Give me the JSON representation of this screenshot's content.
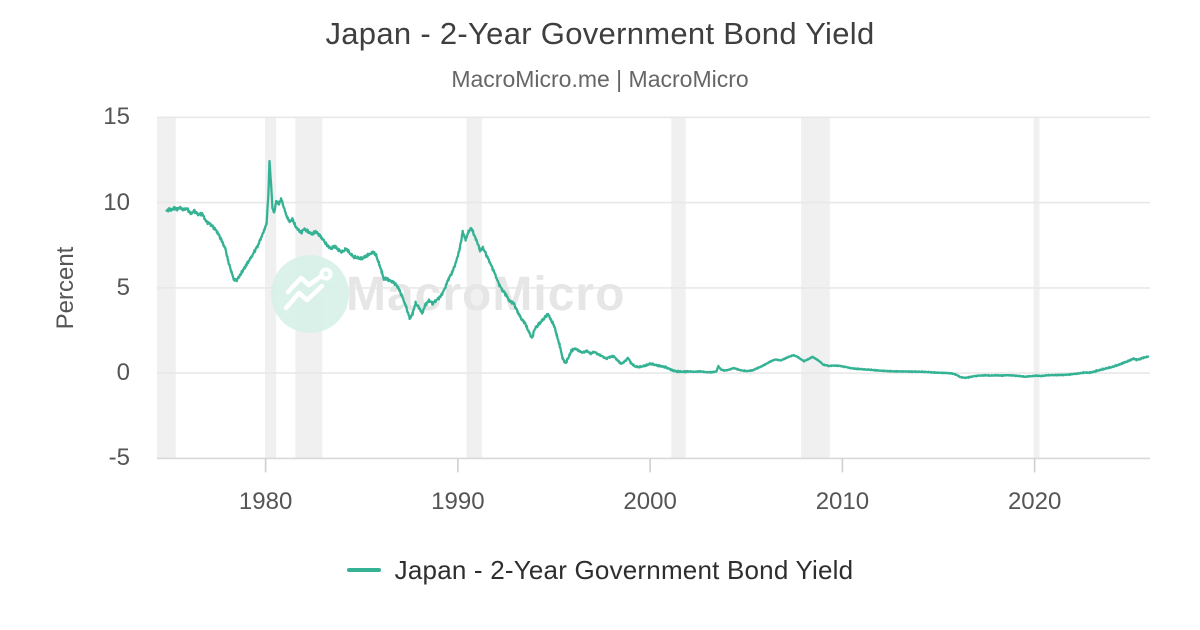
{
  "header": {
    "title": "Japan - 2-Year Government Bond Yield",
    "subtitle": "MacroMicro.me | MacroMicro"
  },
  "watermark": {
    "text": "MacroMicro",
    "logo": "macromicro-mountain-chart-logo",
    "text_color": "#e6e6e6",
    "circle_color": "#d6f0e8"
  },
  "legend": {
    "label": "Japan - 2-Year Government Bond Yield",
    "color": "#35b294"
  },
  "chart_data": {
    "type": "line",
    "title": "Japan - 2-Year Government Bond Yield",
    "xlabel": "",
    "ylabel": "Percent",
    "y_ticks": [
      15,
      10,
      5,
      0,
      -5
    ],
    "x_ticks": [
      1980,
      1990,
      2000,
      2010,
      2020
    ],
    "x_range": [
      1974.35,
      2026.0
    ],
    "y_range": [
      -5,
      15
    ],
    "grid": "horizontal",
    "legend_position": "bottom",
    "line_color": "#35b294",
    "band_color": "#f0f0f0",
    "grid_color": "#e8e8e8",
    "axis_color": "#d9d9d9",
    "tick_color": "#cfcfcf",
    "recession_bands": [
      [
        1974.35,
        1975.33
      ],
      [
        1979.97,
        1980.55
      ],
      [
        1981.55,
        1982.95
      ],
      [
        1990.45,
        1991.25
      ],
      [
        2001.1,
        2001.85
      ],
      [
        2007.85,
        2009.35
      ],
      [
        2019.95,
        2020.25
      ]
    ],
    "series": [
      {
        "name": "Japan - 2-Year Government Bond Yield",
        "points": [
          [
            1974.85,
            9.5
          ],
          [
            1975.0,
            9.62
          ],
          [
            1975.1,
            9.55
          ],
          [
            1975.25,
            9.7
          ],
          [
            1975.4,
            9.6
          ],
          [
            1975.55,
            9.72
          ],
          [
            1975.7,
            9.58
          ],
          [
            1975.9,
            9.65
          ],
          [
            1976.1,
            9.35
          ],
          [
            1976.3,
            9.5
          ],
          [
            1976.5,
            9.3
          ],
          [
            1976.7,
            9.35
          ],
          [
            1976.9,
            8.9
          ],
          [
            1977.1,
            8.75
          ],
          [
            1977.3,
            8.55
          ],
          [
            1977.5,
            8.25
          ],
          [
            1977.7,
            7.8
          ],
          [
            1977.9,
            7.3
          ],
          [
            1978.05,
            6.6
          ],
          [
            1978.2,
            6.0
          ],
          [
            1978.35,
            5.5
          ],
          [
            1978.5,
            5.45
          ],
          [
            1978.7,
            5.8
          ],
          [
            1979.0,
            6.35
          ],
          [
            1979.3,
            6.9
          ],
          [
            1979.6,
            7.5
          ],
          [
            1979.9,
            8.3
          ],
          [
            1980.05,
            8.8
          ],
          [
            1980.15,
            10.6
          ],
          [
            1980.2,
            12.4
          ],
          [
            1980.28,
            11.2
          ],
          [
            1980.35,
            9.7
          ],
          [
            1980.45,
            9.4
          ],
          [
            1980.55,
            10.1
          ],
          [
            1980.7,
            9.9
          ],
          [
            1980.8,
            10.25
          ],
          [
            1980.95,
            9.7
          ],
          [
            1981.1,
            9.2
          ],
          [
            1981.25,
            8.85
          ],
          [
            1981.4,
            9.05
          ],
          [
            1981.55,
            8.6
          ],
          [
            1981.7,
            8.4
          ],
          [
            1981.85,
            8.25
          ],
          [
            1982.0,
            8.45
          ],
          [
            1982.2,
            8.3
          ],
          [
            1982.4,
            8.15
          ],
          [
            1982.6,
            8.3
          ],
          [
            1982.8,
            8.1
          ],
          [
            1983.0,
            7.8
          ],
          [
            1983.2,
            7.5
          ],
          [
            1983.4,
            7.3
          ],
          [
            1983.6,
            7.45
          ],
          [
            1983.8,
            7.2
          ],
          [
            1984.0,
            7.1
          ],
          [
            1984.2,
            7.3
          ],
          [
            1984.4,
            7.0
          ],
          [
            1984.6,
            6.8
          ],
          [
            1984.8,
            6.75
          ],
          [
            1985.0,
            6.7
          ],
          [
            1985.2,
            6.85
          ],
          [
            1985.45,
            7.0
          ],
          [
            1985.6,
            7.1
          ],
          [
            1985.75,
            6.9
          ],
          [
            1985.9,
            6.4
          ],
          [
            1986.05,
            5.9
          ],
          [
            1986.15,
            5.5
          ],
          [
            1986.3,
            5.55
          ],
          [
            1986.5,
            5.4
          ],
          [
            1986.7,
            5.3
          ],
          [
            1986.9,
            5.0
          ],
          [
            1987.1,
            4.5
          ],
          [
            1987.3,
            3.9
          ],
          [
            1987.5,
            3.2
          ],
          [
            1987.65,
            3.5
          ],
          [
            1987.8,
            4.1
          ],
          [
            1988.0,
            3.8
          ],
          [
            1988.15,
            3.5
          ],
          [
            1988.3,
            4.0
          ],
          [
            1988.5,
            4.25
          ],
          [
            1988.7,
            4.1
          ],
          [
            1988.9,
            4.3
          ],
          [
            1989.1,
            4.5
          ],
          [
            1989.3,
            4.9
          ],
          [
            1989.5,
            5.5
          ],
          [
            1989.7,
            5.9
          ],
          [
            1989.9,
            6.5
          ],
          [
            1990.1,
            7.3
          ],
          [
            1990.25,
            8.3
          ],
          [
            1990.4,
            7.8
          ],
          [
            1990.55,
            8.3
          ],
          [
            1990.7,
            8.5
          ],
          [
            1990.85,
            8.1
          ],
          [
            1991.0,
            7.7
          ],
          [
            1991.15,
            7.2
          ],
          [
            1991.3,
            7.35
          ],
          [
            1991.5,
            6.9
          ],
          [
            1991.7,
            6.4
          ],
          [
            1991.9,
            5.9
          ],
          [
            1992.1,
            5.3
          ],
          [
            1992.3,
            4.9
          ],
          [
            1992.5,
            4.6
          ],
          [
            1992.7,
            4.2
          ],
          [
            1992.9,
            4.1
          ],
          [
            1993.1,
            3.6
          ],
          [
            1993.3,
            3.2
          ],
          [
            1993.5,
            2.9
          ],
          [
            1993.7,
            2.4
          ],
          [
            1993.85,
            2.05
          ],
          [
            1994.0,
            2.6
          ],
          [
            1994.2,
            2.85
          ],
          [
            1994.4,
            3.1
          ],
          [
            1994.55,
            3.3
          ],
          [
            1994.7,
            3.45
          ],
          [
            1994.85,
            3.1
          ],
          [
            1995.0,
            2.8
          ],
          [
            1995.15,
            2.2
          ],
          [
            1995.3,
            1.6
          ],
          [
            1995.45,
            0.85
          ],
          [
            1995.6,
            0.6
          ],
          [
            1995.75,
            0.9
          ],
          [
            1995.9,
            1.3
          ],
          [
            1996.1,
            1.45
          ],
          [
            1996.3,
            1.3
          ],
          [
            1996.5,
            1.2
          ],
          [
            1996.7,
            1.3
          ],
          [
            1996.9,
            1.15
          ],
          [
            1997.1,
            1.25
          ],
          [
            1997.3,
            1.1
          ],
          [
            1997.5,
            1.0
          ],
          [
            1997.7,
            0.85
          ],
          [
            1997.9,
            0.95
          ],
          [
            1998.1,
            1.0
          ],
          [
            1998.3,
            0.75
          ],
          [
            1998.5,
            0.55
          ],
          [
            1998.7,
            0.7
          ],
          [
            1998.85,
            0.9
          ],
          [
            1999.0,
            0.6
          ],
          [
            1999.2,
            0.4
          ],
          [
            1999.4,
            0.35
          ],
          [
            1999.6,
            0.4
          ],
          [
            1999.8,
            0.45
          ],
          [
            2000.0,
            0.55
          ],
          [
            2000.2,
            0.5
          ],
          [
            2000.4,
            0.45
          ],
          [
            2000.6,
            0.4
          ],
          [
            2000.8,
            0.35
          ],
          [
            2001.0,
            0.25
          ],
          [
            2001.2,
            0.15
          ],
          [
            2001.4,
            0.1
          ],
          [
            2001.7,
            0.08
          ],
          [
            2002.0,
            0.1
          ],
          [
            2002.3,
            0.08
          ],
          [
            2002.6,
            0.1
          ],
          [
            2002.9,
            0.06
          ],
          [
            2003.2,
            0.05
          ],
          [
            2003.45,
            0.1
          ],
          [
            2003.55,
            0.4
          ],
          [
            2003.7,
            0.2
          ],
          [
            2003.9,
            0.15
          ],
          [
            2004.1,
            0.2
          ],
          [
            2004.35,
            0.3
          ],
          [
            2004.6,
            0.2
          ],
          [
            2004.8,
            0.15
          ],
          [
            2005.0,
            0.12
          ],
          [
            2005.3,
            0.15
          ],
          [
            2005.6,
            0.3
          ],
          [
            2005.9,
            0.45
          ],
          [
            2006.2,
            0.65
          ],
          [
            2006.5,
            0.8
          ],
          [
            2006.8,
            0.75
          ],
          [
            2007.0,
            0.85
          ],
          [
            2007.2,
            0.95
          ],
          [
            2007.45,
            1.05
          ],
          [
            2007.6,
            1.0
          ],
          [
            2007.8,
            0.85
          ],
          [
            2008.0,
            0.7
          ],
          [
            2008.2,
            0.8
          ],
          [
            2008.45,
            0.95
          ],
          [
            2008.6,
            0.85
          ],
          [
            2008.8,
            0.7
          ],
          [
            2009.0,
            0.5
          ],
          [
            2009.3,
            0.42
          ],
          [
            2009.6,
            0.45
          ],
          [
            2009.9,
            0.42
          ],
          [
            2010.2,
            0.35
          ],
          [
            2010.5,
            0.28
          ],
          [
            2010.8,
            0.25
          ],
          [
            2011.1,
            0.22
          ],
          [
            2011.4,
            0.2
          ],
          [
            2011.7,
            0.17
          ],
          [
            2012.0,
            0.14
          ],
          [
            2012.4,
            0.12
          ],
          [
            2012.8,
            0.1
          ],
          [
            2013.2,
            0.1
          ],
          [
            2013.6,
            0.09
          ],
          [
            2014.0,
            0.08
          ],
          [
            2014.4,
            0.07
          ],
          [
            2014.8,
            0.03
          ],
          [
            2015.1,
            0.02
          ],
          [
            2015.4,
            0.01
          ],
          [
            2015.7,
            -0.02
          ],
          [
            2015.95,
            -0.1
          ],
          [
            2016.1,
            -0.22
          ],
          [
            2016.35,
            -0.28
          ],
          [
            2016.6,
            -0.24
          ],
          [
            2016.85,
            -0.18
          ],
          [
            2017.1,
            -0.15
          ],
          [
            2017.4,
            -0.13
          ],
          [
            2017.7,
            -0.14
          ],
          [
            2018.0,
            -0.13
          ],
          [
            2018.3,
            -0.14
          ],
          [
            2018.6,
            -0.12
          ],
          [
            2018.9,
            -0.14
          ],
          [
            2019.2,
            -0.17
          ],
          [
            2019.5,
            -0.21
          ],
          [
            2019.8,
            -0.18
          ],
          [
            2020.1,
            -0.15
          ],
          [
            2020.35,
            -0.17
          ],
          [
            2020.6,
            -0.13
          ],
          [
            2020.9,
            -0.12
          ],
          [
            2021.2,
            -0.11
          ],
          [
            2021.5,
            -0.1
          ],
          [
            2021.8,
            -0.08
          ],
          [
            2022.0,
            -0.05
          ],
          [
            2022.2,
            -0.03
          ],
          [
            2022.4,
            0.0
          ],
          [
            2022.6,
            0.04
          ],
          [
            2022.8,
            0.02
          ],
          [
            2023.0,
            0.06
          ],
          [
            2023.2,
            0.12
          ],
          [
            2023.4,
            0.18
          ],
          [
            2023.6,
            0.24
          ],
          [
            2023.8,
            0.3
          ],
          [
            2024.0,
            0.35
          ],
          [
            2024.2,
            0.42
          ],
          [
            2024.4,
            0.5
          ],
          [
            2024.6,
            0.6
          ],
          [
            2024.8,
            0.68
          ],
          [
            2025.0,
            0.78
          ],
          [
            2025.15,
            0.85
          ],
          [
            2025.3,
            0.78
          ],
          [
            2025.45,
            0.82
          ],
          [
            2025.6,
            0.88
          ],
          [
            2025.75,
            0.93
          ],
          [
            2025.9,
            0.97
          ]
        ]
      }
    ]
  }
}
